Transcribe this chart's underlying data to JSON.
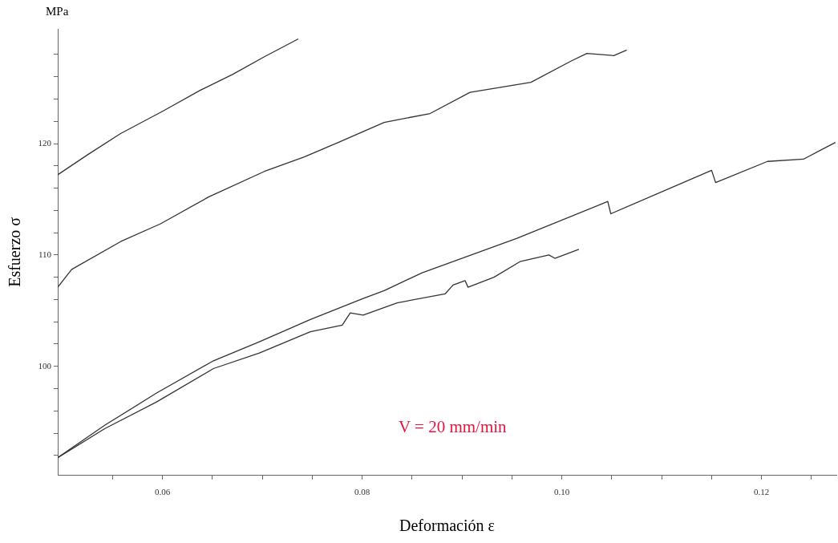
{
  "chart_data": {
    "type": "line",
    "xlabel": "Deformación ε",
    "ylabel": "Esfuerzo σ",
    "annotations": [
      "MPa",
      "V = 20 mm/min"
    ],
    "xlim": [
      0.0495,
      0.1275
    ],
    "ylim": [
      90.2,
      130.3
    ],
    "xticks": [
      {
        "value": 0.055,
        "label": null
      },
      {
        "value": 0.06,
        "label": "0.06"
      },
      {
        "value": 0.065,
        "label": null
      },
      {
        "value": 0.07,
        "label": null
      },
      {
        "value": 0.075,
        "label": null
      },
      {
        "value": 0.08,
        "label": "0.08"
      },
      {
        "value": 0.085,
        "label": null
      },
      {
        "value": 0.09,
        "label": null
      },
      {
        "value": 0.095,
        "label": null
      },
      {
        "value": 0.1,
        "label": "0.10"
      },
      {
        "value": 0.105,
        "label": null
      },
      {
        "value": 0.11,
        "label": null
      },
      {
        "value": 0.115,
        "label": null
      },
      {
        "value": 0.12,
        "label": "0.12"
      },
      {
        "value": 0.125,
        "label": null
      }
    ],
    "yticks": [
      {
        "value": 92,
        "label": null
      },
      {
        "value": 94,
        "label": null
      },
      {
        "value": 96,
        "label": null
      },
      {
        "value": 98,
        "label": null
      },
      100,
      {
        "value": 102,
        "label": null
      },
      {
        "value": 104,
        "label": null
      },
      {
        "value": 106,
        "label": null
      },
      {
        "value": 108,
        "label": null
      },
      110,
      {
        "value": 112,
        "label": null
      },
      {
        "value": 114,
        "label": null
      },
      {
        "value": 116,
        "label": null
      },
      {
        "value": 118,
        "label": null
      },
      120,
      {
        "value": 122,
        "label": null
      },
      {
        "value": 124,
        "label": null
      },
      {
        "value": 126,
        "label": null
      },
      {
        "value": 128,
        "label": null
      }
    ],
    "grid": false,
    "legend": false,
    "marker": "none",
    "line_style": "solid",
    "series": [
      {
        "color": "#333333",
        "x": [
          0.0495,
          0.0525,
          0.0558,
          0.06,
          0.0638,
          0.067,
          0.0702,
          0.0736
        ],
        "values": [
          117.2,
          119.0,
          120.9,
          122.9,
          124.8,
          126.2,
          127.8,
          129.4
        ]
      },
      {
        "color": "#333333",
        "x": [
          0.0495,
          0.0509,
          0.0558,
          0.0598,
          0.0646,
          0.0702,
          0.0742,
          0.0776,
          0.0822,
          0.0868,
          0.0908,
          0.0969,
          0.1009,
          0.1025,
          0.1052,
          0.1065
        ],
        "values": [
          107.1,
          108.7,
          111.2,
          112.8,
          115.2,
          117.5,
          118.8,
          120.1,
          121.9,
          122.7,
          124.6,
          125.5,
          127.4,
          128.1,
          127.9,
          128.4
        ]
      },
      {
        "color": "#333333",
        "x": [
          0.0495,
          0.0542,
          0.0594,
          0.0651,
          0.0697,
          0.0748,
          0.0801,
          0.0822,
          0.086,
          0.0955,
          0.1046,
          0.1049,
          0.115,
          0.1154,
          0.1206,
          0.1242,
          0.1274
        ],
        "values": [
          91.8,
          94.7,
          97.6,
          100.5,
          102.2,
          104.2,
          106.1,
          106.8,
          108.4,
          111.5,
          114.8,
          113.7,
          117.6,
          116.5,
          118.4,
          118.6,
          120.1
        ]
      },
      {
        "color": "#333333",
        "x": [
          0.0495,
          0.0542,
          0.0594,
          0.0651,
          0.0697,
          0.0748,
          0.078,
          0.0788,
          0.0801,
          0.0835,
          0.0883,
          0.0891,
          0.0903,
          0.0906,
          0.0932,
          0.0958,
          0.0987,
          0.0993,
          0.1017
        ],
        "values": [
          91.8,
          94.4,
          96.8,
          99.8,
          101.2,
          103.1,
          103.7,
          104.8,
          104.6,
          105.7,
          106.5,
          107.3,
          107.7,
          107.1,
          108.0,
          109.4,
          110.0,
          109.7,
          110.5
        ]
      }
    ]
  }
}
